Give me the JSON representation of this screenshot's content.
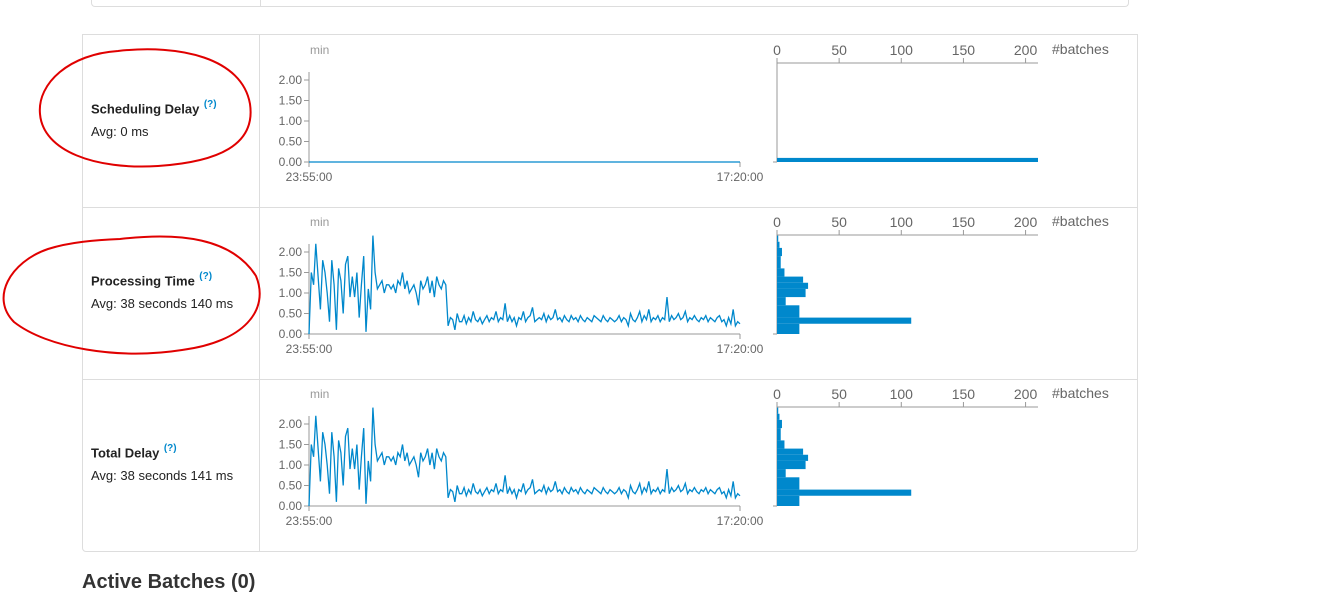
{
  "metrics": [
    {
      "title": "Scheduling Delay",
      "help": "(?)",
      "avg": "Avg: 0 ms"
    },
    {
      "title": "Processing Time",
      "help": "(?)",
      "avg": "Avg: 38 seconds 140 ms"
    },
    {
      "title": "Total Delay",
      "help": "(?)",
      "avg": "Avg: 38 seconds 141 ms"
    }
  ],
  "colors": {
    "series": "#0088cc",
    "axis": "#999999",
    "annotation": "#e00000"
  },
  "active_batches_heading": "Active Batches (0)",
  "chart_data": [
    {
      "type": "line",
      "title": "Scheduling Delay timeline",
      "ylabel": "min",
      "x_ticks": [
        "23:55:00",
        "17:20:00"
      ],
      "y_ticks": [
        "0.00",
        "0.50",
        "1.00",
        "1.50",
        "2.00"
      ],
      "ylim": [
        0,
        2.5
      ],
      "values": [
        0,
        0,
        0,
        0,
        0,
        0,
        0,
        0,
        0,
        0,
        0,
        0,
        0,
        0,
        0,
        0,
        0,
        0,
        0,
        0,
        0,
        0,
        0,
        0,
        0,
        0,
        0,
        0,
        0,
        0,
        0,
        0,
        0,
        0,
        0,
        0,
        0,
        0,
        0,
        0
      ]
    },
    {
      "type": "bar",
      "title": "Scheduling Delay histogram",
      "xlabel": "#batches",
      "x_ticks": [
        "0",
        "50",
        "100",
        "150",
        "200"
      ],
      "xlim": [
        0,
        210
      ],
      "y_range_min": [
        0,
        2.5
      ],
      "bins": [
        {
          "from": 0.0,
          "to": 0.1,
          "count": 210
        }
      ]
    },
    {
      "type": "line",
      "title": "Processing Time timeline",
      "ylabel": "min",
      "x_ticks": [
        "23:55:00",
        "17:20:00"
      ],
      "y_ticks": [
        "0.00",
        "0.50",
        "1.00",
        "1.50",
        "2.00"
      ],
      "ylim": [
        0,
        2.5
      ],
      "values": [
        0,
        1.5,
        1.2,
        2.2,
        1.4,
        0.6,
        1.8,
        1.5,
        1.0,
        0.3,
        1.8,
        1.2,
        0.1,
        1.6,
        1.3,
        0.5,
        1.7,
        1.9,
        0.9,
        1.4,
        0.9,
        1.5,
        0.4,
        1.2,
        1.9,
        0.05,
        1.1,
        0.6,
        2.4,
        1.5,
        1.1,
        1.2,
        1.3,
        1.0,
        1.2,
        1.2,
        1.1,
        1.2,
        1.0,
        1.3,
        1.2,
        1.5,
        1.1,
        1.3,
        1.0,
        1.1,
        1.2,
        1.0,
        0.7,
        1.3,
        1.1,
        1.2,
        1.4,
        1.0,
        1.3,
        0.9,
        1.4,
        1.2,
        1.1,
        1.3,
        1.2,
        0.2,
        0.4,
        0.35,
        0.1,
        0.5,
        0.3,
        0.3,
        0.45,
        0.25,
        0.4,
        0.3,
        0.55,
        0.35,
        0.3,
        0.4,
        0.25,
        0.35,
        0.45,
        0.3,
        0.4,
        0.35,
        0.55,
        0.3,
        0.4,
        0.35,
        0.75,
        0.3,
        0.45,
        0.3,
        0.4,
        0.2,
        0.4,
        0.35,
        0.55,
        0.3,
        0.4,
        0.45,
        0.65,
        0.3,
        0.35,
        0.4,
        0.35,
        0.5,
        0.3,
        0.45,
        0.35,
        0.4,
        0.6,
        0.35,
        0.4,
        0.3,
        0.45,
        0.35,
        0.3,
        0.45,
        0.35,
        0.4,
        0.3,
        0.45,
        0.35,
        0.3,
        0.4,
        0.35,
        0.3,
        0.45,
        0.4,
        0.35,
        0.3,
        0.45,
        0.35,
        0.3,
        0.4,
        0.35,
        0.3,
        0.35,
        0.45,
        0.3,
        0.4,
        0.35,
        0.2,
        0.5,
        0.35,
        0.3,
        0.4,
        0.55,
        0.3,
        0.45,
        0.35,
        0.6,
        0.3,
        0.4,
        0.35,
        0.45,
        0.3,
        0.4,
        0.35,
        0.9,
        0.3,
        0.45,
        0.35,
        0.4,
        0.5,
        0.35,
        0.4,
        0.55,
        0.3,
        0.4,
        0.35,
        0.45,
        0.35,
        0.3,
        0.4,
        0.35,
        0.45,
        0.3,
        0.4,
        0.35,
        0.3,
        0.4,
        0.45,
        0.3,
        0.35,
        0.2,
        0.4,
        0.25,
        0.6,
        0.2,
        0.3,
        0.25
      ]
    },
    {
      "type": "bar",
      "title": "Processing Time histogram",
      "xlabel": "#batches",
      "x_ticks": [
        "0",
        "50",
        "100",
        "150",
        "200"
      ],
      "xlim": [
        0,
        210
      ],
      "y_range_min": [
        0,
        2.5
      ],
      "bins": [
        {
          "from": 0.0,
          "to": 0.25,
          "count": 18
        },
        {
          "from": 0.25,
          "to": 0.4,
          "count": 108
        },
        {
          "from": 0.4,
          "to": 0.7,
          "count": 18
        },
        {
          "from": 0.7,
          "to": 0.9,
          "count": 7
        },
        {
          "from": 0.9,
          "to": 1.1,
          "count": 23
        },
        {
          "from": 1.1,
          "to": 1.25,
          "count": 25
        },
        {
          "from": 1.25,
          "to": 1.4,
          "count": 21
        },
        {
          "from": 1.4,
          "to": 1.6,
          "count": 6
        },
        {
          "from": 1.6,
          "to": 1.9,
          "count": 3
        },
        {
          "from": 1.9,
          "to": 2.1,
          "count": 4
        },
        {
          "from": 2.1,
          "to": 2.25,
          "count": 2
        },
        {
          "from": 2.25,
          "to": 2.4,
          "count": 1
        }
      ]
    },
    {
      "type": "line",
      "title": "Total Delay timeline",
      "ylabel": "min",
      "x_ticks": [
        "23:55:00",
        "17:20:00"
      ],
      "y_ticks": [
        "0.00",
        "0.50",
        "1.00",
        "1.50",
        "2.00"
      ],
      "ylim": [
        0,
        2.5
      ],
      "values": [
        0,
        1.5,
        1.2,
        2.2,
        1.4,
        0.6,
        1.8,
        1.5,
        1.0,
        0.3,
        1.8,
        1.2,
        0.1,
        1.6,
        1.3,
        0.5,
        1.7,
        1.9,
        0.9,
        1.4,
        0.9,
        1.5,
        0.4,
        1.2,
        1.9,
        0.05,
        1.1,
        0.6,
        2.4,
        1.5,
        1.1,
        1.2,
        1.3,
        1.0,
        1.2,
        1.2,
        1.1,
        1.2,
        1.0,
        1.3,
        1.2,
        1.5,
        1.1,
        1.3,
        1.0,
        1.1,
        1.2,
        1.0,
        0.7,
        1.3,
        1.1,
        1.2,
        1.4,
        1.0,
        1.3,
        0.9,
        1.4,
        1.2,
        1.1,
        1.3,
        1.2,
        0.2,
        0.4,
        0.35,
        0.1,
        0.5,
        0.3,
        0.3,
        0.45,
        0.25,
        0.4,
        0.3,
        0.55,
        0.35,
        0.3,
        0.4,
        0.25,
        0.35,
        0.45,
        0.3,
        0.4,
        0.35,
        0.55,
        0.3,
        0.4,
        0.35,
        0.75,
        0.3,
        0.45,
        0.3,
        0.4,
        0.2,
        0.4,
        0.35,
        0.55,
        0.3,
        0.4,
        0.45,
        0.65,
        0.3,
        0.35,
        0.4,
        0.35,
        0.5,
        0.3,
        0.45,
        0.35,
        0.4,
        0.6,
        0.35,
        0.4,
        0.3,
        0.45,
        0.35,
        0.3,
        0.45,
        0.35,
        0.4,
        0.3,
        0.45,
        0.35,
        0.3,
        0.4,
        0.35,
        0.3,
        0.45,
        0.4,
        0.35,
        0.3,
        0.45,
        0.35,
        0.3,
        0.4,
        0.35,
        0.3,
        0.35,
        0.45,
        0.3,
        0.4,
        0.35,
        0.2,
        0.5,
        0.35,
        0.3,
        0.4,
        0.55,
        0.3,
        0.45,
        0.35,
        0.6,
        0.3,
        0.4,
        0.35,
        0.45,
        0.3,
        0.4,
        0.35,
        0.9,
        0.3,
        0.45,
        0.35,
        0.4,
        0.5,
        0.35,
        0.4,
        0.55,
        0.3,
        0.4,
        0.35,
        0.45,
        0.35,
        0.3,
        0.4,
        0.35,
        0.45,
        0.3,
        0.4,
        0.35,
        0.3,
        0.4,
        0.45,
        0.3,
        0.35,
        0.2,
        0.4,
        0.25,
        0.6,
        0.2,
        0.3,
        0.25
      ]
    },
    {
      "type": "bar",
      "title": "Total Delay histogram",
      "xlabel": "#batches",
      "x_ticks": [
        "0",
        "50",
        "100",
        "150",
        "200"
      ],
      "xlim": [
        0,
        210
      ],
      "y_range_min": [
        0,
        2.5
      ],
      "bins": [
        {
          "from": 0.0,
          "to": 0.25,
          "count": 18
        },
        {
          "from": 0.25,
          "to": 0.4,
          "count": 108
        },
        {
          "from": 0.4,
          "to": 0.7,
          "count": 18
        },
        {
          "from": 0.7,
          "to": 0.9,
          "count": 7
        },
        {
          "from": 0.9,
          "to": 1.1,
          "count": 23
        },
        {
          "from": 1.1,
          "to": 1.25,
          "count": 25
        },
        {
          "from": 1.25,
          "to": 1.4,
          "count": 21
        },
        {
          "from": 1.4,
          "to": 1.6,
          "count": 6
        },
        {
          "from": 1.6,
          "to": 1.9,
          "count": 3
        },
        {
          "from": 1.9,
          "to": 2.1,
          "count": 4
        },
        {
          "from": 2.1,
          "to": 2.25,
          "count": 2
        },
        {
          "from": 2.25,
          "to": 2.4,
          "count": 1
        }
      ]
    }
  ]
}
